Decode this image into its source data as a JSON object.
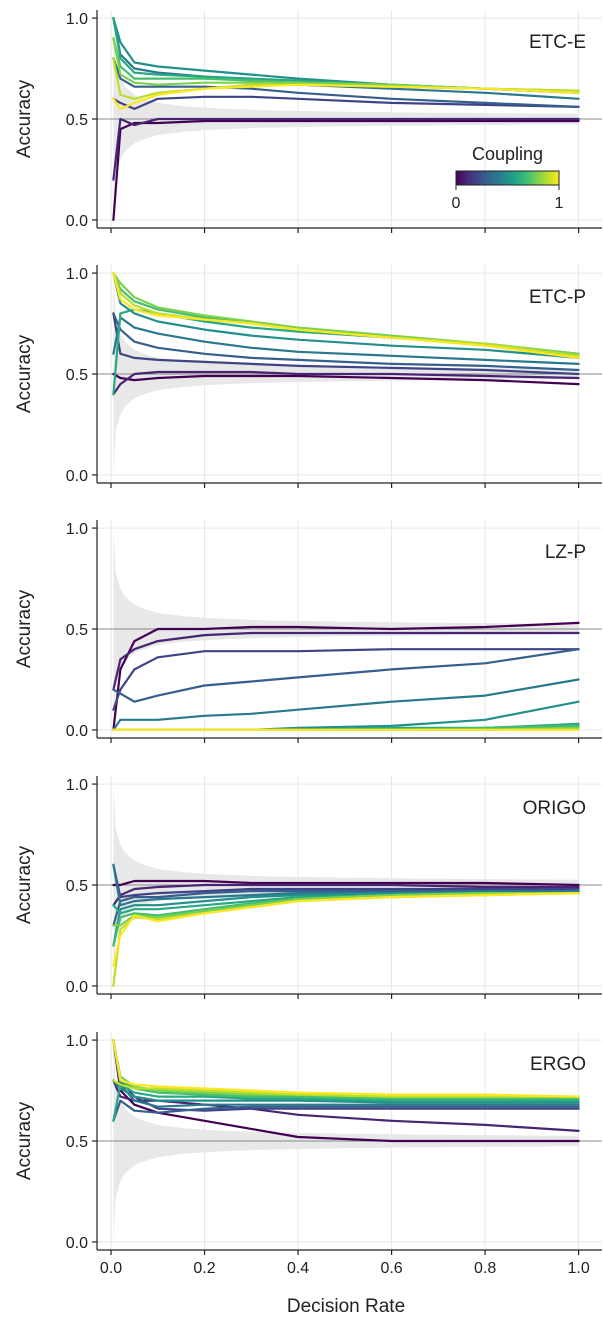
{
  "chart_data": {
    "type": "line",
    "xlabel": "Decision Rate",
    "ylabel": "Accuracy",
    "xlim": [
      -0.03,
      1.05
    ],
    "ylim": [
      -0.04,
      1.04
    ],
    "xticks": [
      "0.0",
      "0.2",
      "0.4",
      "0.6",
      "0.8",
      "1.0"
    ],
    "xtick_values": [
      0,
      0.2,
      0.4,
      0.6,
      0.8,
      1.0
    ],
    "yticks": [
      "0.0",
      "0.5",
      "1.0"
    ],
    "ytick_values": [
      0,
      0.5,
      1.0
    ],
    "grid": true,
    "reference_line": 0.5,
    "colorbar": {
      "title": "Coupling",
      "min_label": "0",
      "max_label": "1",
      "colormap": [
        "#440154",
        "#482878",
        "#3e4a89",
        "#31688e",
        "#26828e",
        "#1f9e89",
        "#35b779",
        "#6ece58",
        "#b5de2b",
        "#fde725"
      ],
      "panel": "ETC-E",
      "placement": "lower-right"
    },
    "band": {
      "x": [
        0.005,
        0.01,
        0.02,
        0.03,
        0.05,
        0.07,
        0.1,
        0.15,
        0.2,
        0.3,
        0.4,
        0.5,
        0.6,
        0.7,
        0.8,
        0.9,
        1.0
      ],
      "upper": [
        1.0,
        0.78,
        0.7,
        0.66,
        0.62,
        0.6,
        0.58,
        0.565,
        0.556,
        0.545,
        0.54,
        0.536,
        0.533,
        0.531,
        0.529,
        0.527,
        0.526
      ],
      "lower": [
        0.0,
        0.22,
        0.3,
        0.34,
        0.38,
        0.4,
        0.42,
        0.435,
        0.444,
        0.455,
        0.46,
        0.464,
        0.467,
        0.469,
        0.471,
        0.473,
        0.474
      ],
      "color": "#e8e8e8"
    },
    "panels": [
      {
        "title": "ETC-E",
        "x": [
          0.005,
          0.02,
          0.05,
          0.1,
          0.2,
          0.3,
          0.4,
          0.6,
          0.8,
          1.0
        ],
        "series": [
          {
            "coupling": 0.0,
            "values": [
              0.0,
              0.45,
              0.48,
              0.48,
              0.49,
              0.49,
              0.49,
              0.49,
              0.49,
              0.49
            ]
          },
          {
            "coupling": 0.1,
            "values": [
              0.2,
              0.5,
              0.47,
              0.5,
              0.5,
              0.5,
              0.5,
              0.5,
              0.5,
              0.5
            ]
          },
          {
            "coupling": 0.2,
            "values": [
              0.6,
              0.58,
              0.55,
              0.6,
              0.61,
              0.61,
              0.6,
              0.58,
              0.57,
              0.56
            ]
          },
          {
            "coupling": 0.3,
            "values": [
              0.8,
              0.7,
              0.66,
              0.66,
              0.66,
              0.65,
              0.63,
              0.6,
              0.58,
              0.56
            ]
          },
          {
            "coupling": 0.4,
            "values": [
              1.0,
              0.82,
              0.75,
              0.73,
              0.71,
              0.69,
              0.67,
              0.65,
              0.63,
              0.6
            ]
          },
          {
            "coupling": 0.5,
            "values": [
              1.0,
              0.88,
              0.78,
              0.76,
              0.74,
              0.72,
              0.7,
              0.67,
              0.65,
              0.63
            ]
          },
          {
            "coupling": 0.6,
            "values": [
              1.0,
              0.8,
              0.73,
              0.72,
              0.71,
              0.7,
              0.69,
              0.67,
              0.65,
              0.63
            ]
          },
          {
            "coupling": 0.7,
            "values": [
              0.9,
              0.76,
              0.7,
              0.7,
              0.7,
              0.69,
              0.68,
              0.66,
              0.65,
              0.63
            ]
          },
          {
            "coupling": 0.8,
            "values": [
              0.9,
              0.72,
              0.68,
              0.67,
              0.68,
              0.68,
              0.68,
              0.67,
              0.65,
              0.64
            ]
          },
          {
            "coupling": 0.9,
            "values": [
              0.8,
              0.62,
              0.6,
              0.63,
              0.65,
              0.67,
              0.67,
              0.66,
              0.65,
              0.64
            ]
          },
          {
            "coupling": 1.0,
            "values": [
              0.6,
              0.55,
              0.58,
              0.62,
              0.65,
              0.66,
              0.67,
              0.66,
              0.65,
              0.63
            ]
          }
        ]
      },
      {
        "title": "ETC-P",
        "x": [
          0.005,
          0.02,
          0.05,
          0.1,
          0.2,
          0.3,
          0.4,
          0.6,
          0.8,
          1.0
        ],
        "series": [
          {
            "coupling": 0.0,
            "values": [
              0.5,
              0.48,
              0.47,
              0.48,
              0.49,
              0.49,
              0.49,
              0.48,
              0.47,
              0.45
            ]
          },
          {
            "coupling": 0.1,
            "values": [
              0.4,
              0.45,
              0.5,
              0.51,
              0.51,
              0.51,
              0.5,
              0.5,
              0.49,
              0.48
            ]
          },
          {
            "coupling": 0.2,
            "values": [
              0.8,
              0.6,
              0.58,
              0.57,
              0.56,
              0.55,
              0.54,
              0.53,
              0.52,
              0.5
            ]
          },
          {
            "coupling": 0.3,
            "values": [
              0.8,
              0.72,
              0.66,
              0.63,
              0.6,
              0.58,
              0.57,
              0.55,
              0.54,
              0.52
            ]
          },
          {
            "coupling": 0.4,
            "values": [
              0.6,
              0.78,
              0.73,
              0.7,
              0.66,
              0.63,
              0.61,
              0.59,
              0.57,
              0.55
            ]
          },
          {
            "coupling": 0.5,
            "values": [
              1.0,
              0.85,
              0.8,
              0.76,
              0.72,
              0.69,
              0.67,
              0.64,
              0.62,
              0.58
            ]
          },
          {
            "coupling": 0.6,
            "values": [
              0.4,
              0.8,
              0.82,
              0.8,
              0.76,
              0.73,
              0.71,
              0.68,
              0.65,
              0.6
            ]
          },
          {
            "coupling": 0.7,
            "values": [
              1.0,
              0.92,
              0.86,
              0.82,
              0.78,
              0.75,
              0.72,
              0.68,
              0.65,
              0.6
            ]
          },
          {
            "coupling": 0.8,
            "values": [
              1.0,
              0.95,
              0.88,
              0.83,
              0.79,
              0.76,
              0.73,
              0.69,
              0.65,
              0.6
            ]
          },
          {
            "coupling": 0.9,
            "values": [
              1.0,
              0.9,
              0.84,
              0.8,
              0.77,
              0.75,
              0.72,
              0.68,
              0.65,
              0.59
            ]
          },
          {
            "coupling": 1.0,
            "values": [
              1.0,
              0.87,
              0.82,
              0.79,
              0.77,
              0.75,
              0.72,
              0.68,
              0.64,
              0.58
            ]
          }
        ]
      },
      {
        "title": "LZ-P",
        "x": [
          0.005,
          0.02,
          0.05,
          0.1,
          0.2,
          0.3,
          0.4,
          0.6,
          0.8,
          1.0
        ],
        "series": [
          {
            "coupling": 0.0,
            "values": [
              0.0,
              0.3,
              0.44,
              0.5,
              0.5,
              0.51,
              0.51,
              0.5,
              0.51,
              0.53
            ]
          },
          {
            "coupling": 0.1,
            "values": [
              0.2,
              0.35,
              0.4,
              0.44,
              0.47,
              0.48,
              0.48,
              0.48,
              0.48,
              0.48
            ]
          },
          {
            "coupling": 0.2,
            "values": [
              0.1,
              0.2,
              0.3,
              0.36,
              0.39,
              0.39,
              0.39,
              0.4,
              0.4,
              0.4
            ]
          },
          {
            "coupling": 0.3,
            "values": [
              0.2,
              0.18,
              0.14,
              0.17,
              0.22,
              0.24,
              0.26,
              0.3,
              0.33,
              0.4
            ]
          },
          {
            "coupling": 0.4,
            "values": [
              0.0,
              0.05,
              0.05,
              0.05,
              0.07,
              0.08,
              0.1,
              0.14,
              0.17,
              0.25
            ]
          },
          {
            "coupling": 0.5,
            "values": [
              0.0,
              0.0,
              0.0,
              0.0,
              0.0,
              0.0,
              0.01,
              0.02,
              0.05,
              0.14
            ]
          },
          {
            "coupling": 0.6,
            "values": [
              0.0,
              0.0,
              0.0,
              0.0,
              0.0,
              0.0,
              0.0,
              0.01,
              0.01,
              0.03
            ]
          },
          {
            "coupling": 0.7,
            "values": [
              0.0,
              0.0,
              0.0,
              0.0,
              0.0,
              0.0,
              0.0,
              0.0,
              0.01,
              0.02
            ]
          },
          {
            "coupling": 0.8,
            "values": [
              0.0,
              0.0,
              0.0,
              0.0,
              0.0,
              0.0,
              0.0,
              0.0,
              0.0,
              0.01
            ]
          },
          {
            "coupling": 0.9,
            "values": [
              0.0,
              0.0,
              0.0,
              0.0,
              0.0,
              0.0,
              0.0,
              0.0,
              0.0,
              0.0
            ]
          },
          {
            "coupling": 1.0,
            "values": [
              0.0,
              0.0,
              0.0,
              0.0,
              0.0,
              0.0,
              0.0,
              0.0,
              0.0,
              0.0
            ]
          }
        ]
      },
      {
        "title": "ORIGO",
        "x": [
          0.005,
          0.02,
          0.05,
          0.1,
          0.2,
          0.3,
          0.4,
          0.6,
          0.8,
          1.0
        ],
        "series": [
          {
            "coupling": 0.0,
            "values": [
              0.5,
              0.5,
              0.52,
              0.52,
              0.52,
              0.51,
              0.51,
              0.51,
              0.51,
              0.5
            ]
          },
          {
            "coupling": 0.1,
            "values": [
              0.4,
              0.45,
              0.48,
              0.49,
              0.5,
              0.5,
              0.5,
              0.5,
              0.49,
              0.49
            ]
          },
          {
            "coupling": 0.2,
            "values": [
              0.6,
              0.44,
              0.45,
              0.46,
              0.47,
              0.48,
              0.48,
              0.48,
              0.48,
              0.48
            ]
          },
          {
            "coupling": 0.3,
            "values": [
              0.3,
              0.42,
              0.44,
              0.44,
              0.46,
              0.47,
              0.47,
              0.47,
              0.47,
              0.47
            ]
          },
          {
            "coupling": 0.4,
            "values": [
              0.6,
              0.4,
              0.42,
              0.43,
              0.44,
              0.45,
              0.46,
              0.46,
              0.47,
              0.47
            ]
          },
          {
            "coupling": 0.5,
            "values": [
              0.2,
              0.38,
              0.4,
              0.4,
              0.42,
              0.44,
              0.45,
              0.46,
              0.46,
              0.46
            ]
          },
          {
            "coupling": 0.6,
            "values": [
              0.4,
              0.36,
              0.38,
              0.38,
              0.4,
              0.42,
              0.44,
              0.45,
              0.46,
              0.46
            ]
          },
          {
            "coupling": 0.7,
            "values": [
              0.2,
              0.34,
              0.36,
              0.35,
              0.38,
              0.41,
              0.43,
              0.45,
              0.46,
              0.46
            ]
          },
          {
            "coupling": 0.8,
            "values": [
              0.3,
              0.3,
              0.35,
              0.34,
              0.37,
              0.4,
              0.43,
              0.45,
              0.46,
              0.46
            ]
          },
          {
            "coupling": 0.9,
            "values": [
              0.0,
              0.28,
              0.34,
              0.33,
              0.36,
              0.39,
              0.42,
              0.44,
              0.45,
              0.46
            ]
          },
          {
            "coupling": 1.0,
            "values": [
              0.1,
              0.25,
              0.35,
              0.32,
              0.36,
              0.39,
              0.42,
              0.44,
              0.45,
              0.46
            ]
          }
        ]
      },
      {
        "title": "ERGO",
        "x": [
          0.005,
          0.02,
          0.05,
          0.1,
          0.2,
          0.3,
          0.4,
          0.6,
          0.8,
          1.0
        ],
        "series": [
          {
            "coupling": 0.0,
            "values": [
              1.0,
              0.75,
              0.68,
              0.64,
              0.6,
              0.56,
              0.52,
              0.5,
              0.5,
              0.5
            ]
          },
          {
            "coupling": 0.1,
            "values": [
              0.8,
              0.72,
              0.7,
              0.7,
              0.68,
              0.66,
              0.63,
              0.6,
              0.58,
              0.55
            ]
          },
          {
            "coupling": 0.2,
            "values": [
              1.0,
              0.8,
              0.72,
              0.66,
              0.65,
              0.66,
              0.66,
              0.66,
              0.66,
              0.66
            ]
          },
          {
            "coupling": 0.3,
            "values": [
              0.6,
              0.7,
              0.65,
              0.64,
              0.66,
              0.67,
              0.67,
              0.67,
              0.67,
              0.67
            ]
          },
          {
            "coupling": 0.4,
            "values": [
              1.0,
              0.78,
              0.7,
              0.67,
              0.68,
              0.68,
              0.68,
              0.68,
              0.68,
              0.68
            ]
          },
          {
            "coupling": 0.5,
            "values": [
              0.8,
              0.76,
              0.72,
              0.7,
              0.7,
              0.7,
              0.7,
              0.69,
              0.69,
              0.69
            ]
          },
          {
            "coupling": 0.6,
            "values": [
              0.6,
              0.78,
              0.74,
              0.72,
              0.72,
              0.71,
              0.71,
              0.7,
              0.7,
              0.7
            ]
          },
          {
            "coupling": 0.7,
            "values": [
              1.0,
              0.8,
              0.76,
              0.74,
              0.73,
              0.72,
              0.72,
              0.71,
              0.71,
              0.71
            ]
          },
          {
            "coupling": 0.8,
            "values": [
              1.0,
              0.82,
              0.77,
              0.75,
              0.74,
              0.73,
              0.73,
              0.72,
              0.72,
              0.72
            ]
          },
          {
            "coupling": 0.9,
            "values": [
              0.8,
              0.78,
              0.76,
              0.76,
              0.75,
              0.74,
              0.73,
              0.72,
              0.72,
              0.72
            ]
          },
          {
            "coupling": 1.0,
            "values": [
              1.0,
              0.8,
              0.78,
              0.77,
              0.76,
              0.75,
              0.74,
              0.73,
              0.73,
              0.72
            ]
          }
        ]
      }
    ]
  }
}
